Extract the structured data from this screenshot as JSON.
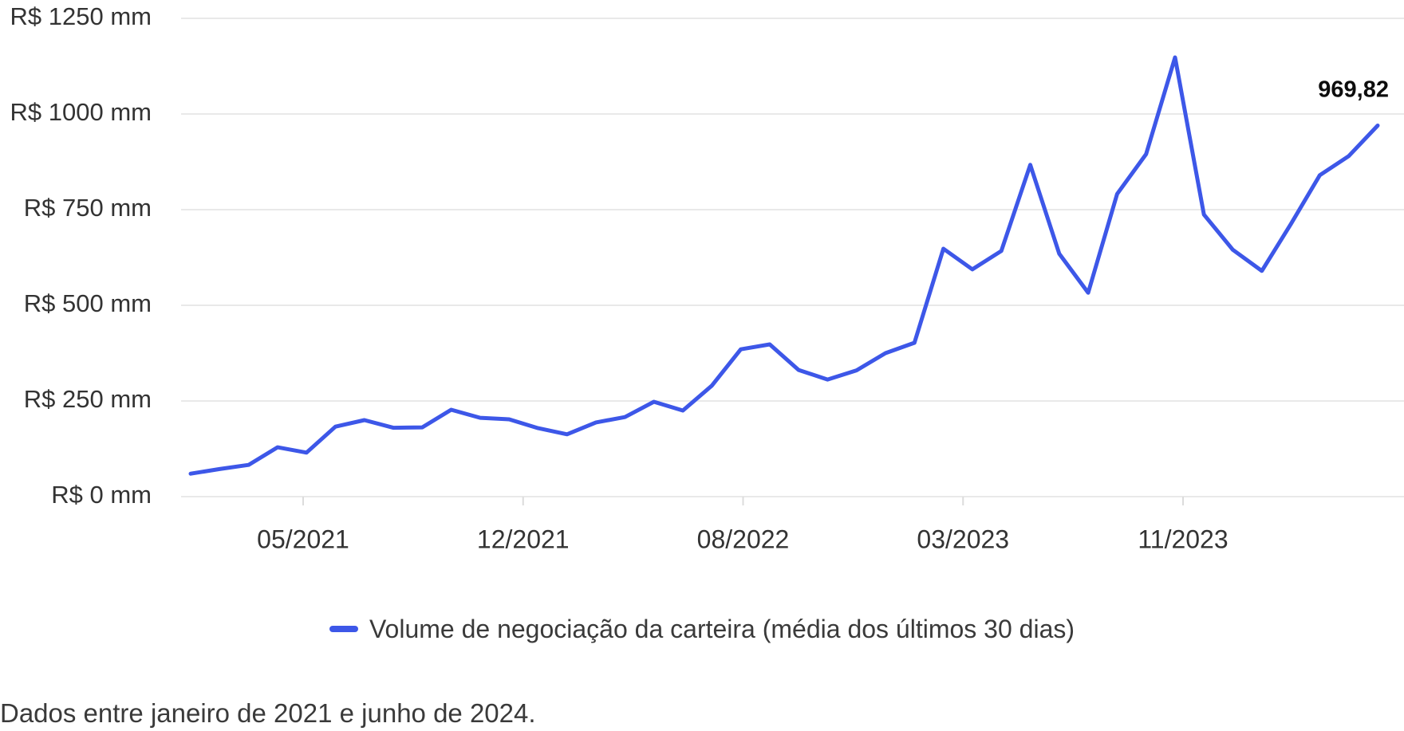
{
  "chart_data": {
    "type": "line",
    "title": "",
    "currency_unit": "R$ mm",
    "series": [
      {
        "name": "Volume de negociação da carteira (média dos últimos 30 dias)",
        "x": [
          "01/2021",
          "02/2021",
          "03/2021",
          "04/2021",
          "05/2021",
          "06/2021",
          "07/2021",
          "08/2021",
          "09/2021",
          "10/2021",
          "11/2021",
          "12/2021",
          "01/2022",
          "02/2022",
          "03/2022",
          "04/2022",
          "05/2022",
          "06/2022",
          "07/2022",
          "08/2022",
          "09/2022",
          "10/2022",
          "11/2022",
          "12/2022",
          "01/2023",
          "02/2023",
          "03/2023",
          "04/2023",
          "05/2023",
          "06/2023",
          "07/2023",
          "08/2023",
          "09/2023",
          "10/2023",
          "11/2023",
          "12/2023",
          "01/2024",
          "02/2024",
          "03/2024",
          "04/2024",
          "05/2024",
          "06/2024"
        ],
        "values": [
          60,
          72,
          83,
          129,
          115,
          183,
          200,
          180,
          181,
          227,
          206,
          202,
          179,
          163,
          194,
          208,
          248,
          225,
          290,
          385,
          398,
          331,
          306,
          330,
          375,
          402,
          648,
          594,
          642,
          867,
          635,
          533,
          791,
          895,
          1148,
          737,
          645,
          590,
          712,
          840,
          890,
          969.82
        ]
      }
    ],
    "x_tick_labels": [
      "05/2021",
      "12/2021",
      "08/2022",
      "03/2023",
      "11/2023"
    ],
    "y_ticks": [
      {
        "label": "R$ 0 mm",
        "value": 0
      },
      {
        "label": "R$ 250 mm",
        "value": 250
      },
      {
        "label": "R$ 500 mm",
        "value": 500
      },
      {
        "label": "R$ 750 mm",
        "value": 750
      },
      {
        "label": "R$ 1000 mm",
        "value": 1000
      },
      {
        "label": "R$ 1250 mm",
        "value": 1250
      }
    ],
    "ylim": [
      0,
      1250
    ],
    "grid": "horizontal",
    "legend_position": "bottom-center",
    "last_value_label": "969,82"
  },
  "legend": {
    "label": "Volume de negociação da carteira (média dos últimos 30 dias)"
  },
  "footer": {
    "note": "Dados entre janeiro de 2021 e junho de 2024."
  },
  "colors": {
    "line": "#3d57e8",
    "grid": "#e9e9e9",
    "tick": "#dcdcdc",
    "axis_text": "#333333",
    "value_label": "#0d0d0d"
  }
}
